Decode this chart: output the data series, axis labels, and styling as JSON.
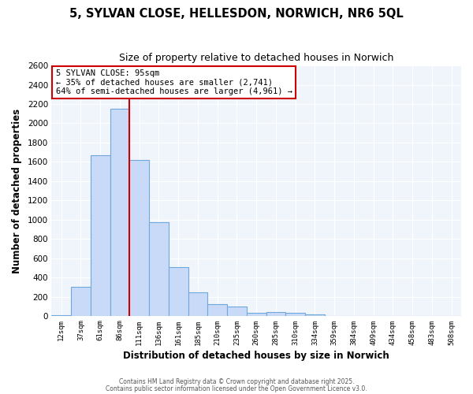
{
  "title_line1": "5, SYLVAN CLOSE, HELLESDON, NORWICH, NR6 5QL",
  "title_line2": "Size of property relative to detached houses in Norwich",
  "xlabel": "Distribution of detached houses by size in Norwich",
  "ylabel": "Number of detached properties",
  "bar_labels": [
    "12sqm",
    "37sqm",
    "61sqm",
    "86sqm",
    "111sqm",
    "136sqm",
    "161sqm",
    "185sqm",
    "210sqm",
    "235sqm",
    "260sqm",
    "285sqm",
    "310sqm",
    "334sqm",
    "359sqm",
    "384sqm",
    "409sqm",
    "434sqm",
    "458sqm",
    "483sqm",
    "508sqm"
  ],
  "bar_values": [
    10,
    300,
    1670,
    2150,
    1620,
    970,
    510,
    250,
    120,
    100,
    30,
    45,
    30,
    20,
    5,
    5,
    3,
    3,
    2,
    2,
    2
  ],
  "bar_color": "#c9daf8",
  "bar_edge_color": "#6fa8dc",
  "background_color": "#ffffff",
  "plot_bg_color": "#f0f4fb",
  "grid_color": "#ffffff",
  "vline_color": "#cc0000",
  "vline_x_index": 3,
  "annotation_title": "5 SYLVAN CLOSE: 95sqm",
  "annotation_line1": "← 35% of detached houses are smaller (2,741)",
  "annotation_line2": "64% of semi-detached houses are larger (4,961) →",
  "annotation_box_color": "#ffffff",
  "annotation_box_edge": "#cc0000",
  "ylim": [
    0,
    2600
  ],
  "yticks": [
    0,
    200,
    400,
    600,
    800,
    1000,
    1200,
    1400,
    1600,
    1800,
    2000,
    2200,
    2400,
    2600
  ],
  "footnote1": "Contains HM Land Registry data © Crown copyright and database right 2025.",
  "footnote2": "Contains public sector information licensed under the Open Government Licence v3.0."
}
